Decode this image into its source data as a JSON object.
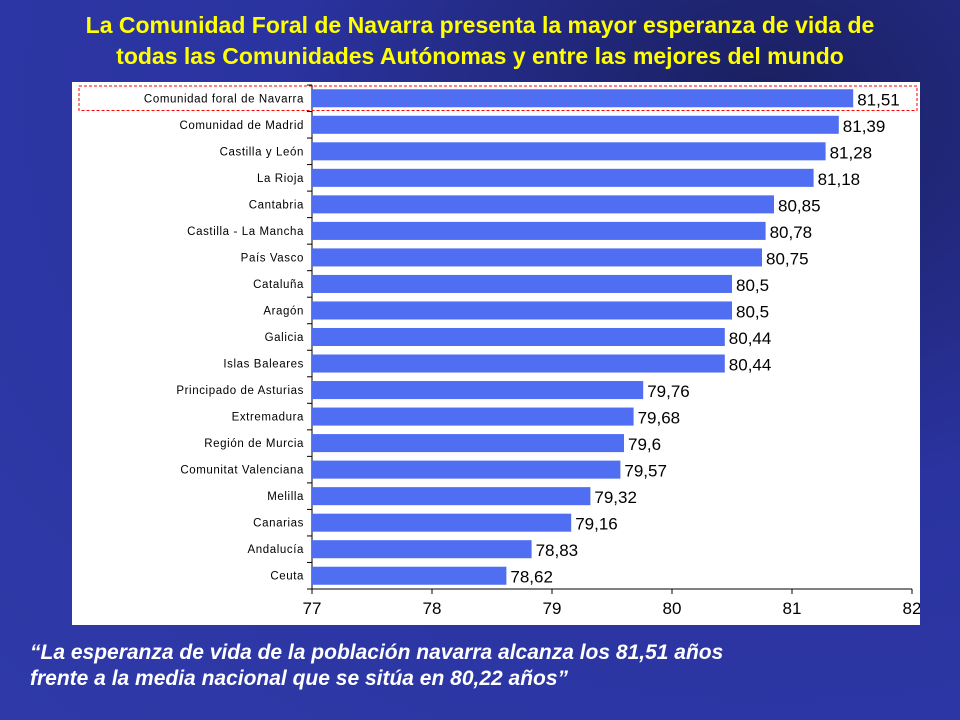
{
  "slide": {
    "title_line1": "La Comunidad Foral de Navarra presenta la mayor esperanza de vida de",
    "title_line2": "todas las Comunidades Autónomas  y entre las mejores del mundo",
    "quote_line1": "“La esperanza de vida de la población navarra alcanza los 81,51 años",
    "quote_line2": "frente a la media nacional que se sitúa en 80,22 años”"
  },
  "colors": {
    "bar": "#4f6ef2",
    "highlight_box": "#ff0000",
    "title": "#ffff00",
    "background": "#2f3aa8"
  },
  "chart_data": {
    "type": "bar",
    "orientation": "horizontal",
    "categories": [
      "Comunidad foral de Navarra",
      "Comunidad de Madrid",
      "Castilla y León",
      "La Rioja",
      "Cantabria",
      "Castilla - La Mancha",
      "País Vasco",
      "Cataluña",
      "Aragón",
      "Galicia",
      "Islas Baleares",
      "Principado de Asturias",
      "Extremadura",
      "Región de Murcia",
      "Comunitat Valenciana",
      "Melilla",
      "Canarias",
      "Andalucía",
      "Ceuta"
    ],
    "values": [
      81.51,
      81.39,
      81.28,
      81.18,
      80.85,
      80.78,
      80.75,
      80.5,
      80.5,
      80.44,
      80.44,
      79.76,
      79.68,
      79.6,
      79.57,
      79.32,
      79.16,
      78.83,
      78.62
    ],
    "data_labels": [
      "81,51",
      "81,39",
      "81,28",
      "81,18",
      "80,85",
      "80,78",
      "80,75",
      "80,5",
      "80,5",
      "80,44",
      "80,44",
      "79,76",
      "79,68",
      "79,6",
      "79,57",
      "79,32",
      "79,16",
      "78,83",
      "78,62"
    ],
    "xlim": [
      77,
      82
    ],
    "xticks": [
      "77",
      "78",
      "79",
      "80",
      "81",
      "82"
    ],
    "highlighted_category": "Comunidad foral de Navarra",
    "grid": false,
    "legend": "none"
  }
}
